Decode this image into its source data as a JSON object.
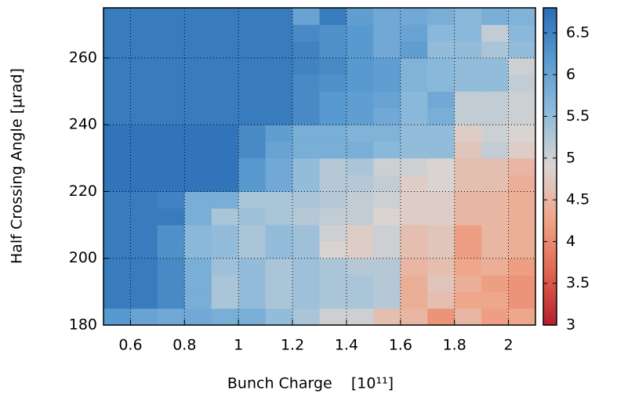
{
  "chart_data": {
    "type": "heatmap",
    "x_label": "Bunch Charge    [10¹¹]",
    "y_label": "Half Crossing Angle [µrad]",
    "x_bins": [
      0.5,
      0.6,
      0.7,
      0.8,
      0.9,
      1.0,
      1.1,
      1.2,
      1.3,
      1.4,
      1.5,
      1.6,
      1.7,
      1.8,
      1.9,
      2.0,
      2.1
    ],
    "y_bins": [
      180,
      185,
      190,
      195,
      200,
      205,
      210,
      215,
      220,
      225,
      230,
      235,
      240,
      245,
      250,
      255,
      260,
      265,
      270,
      275
    ],
    "z": [
      [
        6.2,
        6.0,
        5.9,
        5.9,
        5.8,
        5.8,
        5.5,
        5.3,
        5.0,
        5.0,
        4.6,
        4.5,
        4.1,
        4.5,
        4.2,
        4.3
      ],
      [
        6.6,
        6.6,
        6.4,
        5.8,
        5.3,
        5.5,
        5.3,
        5.4,
        5.3,
        5.3,
        5.2,
        4.4,
        4.6,
        4.3,
        4.3,
        4.1
      ],
      [
        6.6,
        6.6,
        6.4,
        5.8,
        5.3,
        5.5,
        5.3,
        5.4,
        5.3,
        5.3,
        5.2,
        4.4,
        4.7,
        4.4,
        4.2,
        4.1
      ],
      [
        6.6,
        6.6,
        6.4,
        5.8,
        5.4,
        5.5,
        5.3,
        5.4,
        5.3,
        5.2,
        5.2,
        4.5,
        4.6,
        4.3,
        4.4,
        4.2
      ],
      [
        6.6,
        6.6,
        6.3,
        5.6,
        5.5,
        5.3,
        5.5,
        5.4,
        4.9,
        4.8,
        5.0,
        4.6,
        4.7,
        4.2,
        4.5,
        4.4
      ],
      [
        6.6,
        6.6,
        6.3,
        5.6,
        5.5,
        5.3,
        5.5,
        5.4,
        5.0,
        4.8,
        5.0,
        4.6,
        4.7,
        4.2,
        4.5,
        4.4
      ],
      [
        6.6,
        6.6,
        6.6,
        5.8,
        5.3,
        5.4,
        5.3,
        5.2,
        5.1,
        5.1,
        4.9,
        4.8,
        4.8,
        4.5,
        4.5,
        4.4
      ],
      [
        6.6,
        6.6,
        6.5,
        5.8,
        5.8,
        5.3,
        5.3,
        5.3,
        5.2,
        5.1,
        5.0,
        4.8,
        4.8,
        4.5,
        4.5,
        4.4
      ],
      [
        6.7,
        6.7,
        6.7,
        6.7,
        6.7,
        6.2,
        5.9,
        5.5,
        5.2,
        5.2,
        5.1,
        4.8,
        4.9,
        4.6,
        4.6,
        4.4
      ],
      [
        6.7,
        6.7,
        6.7,
        6.7,
        6.7,
        6.2,
        5.9,
        5.5,
        5.2,
        5.3,
        5.0,
        5.0,
        4.9,
        4.6,
        4.6,
        4.5
      ],
      [
        6.7,
        6.7,
        6.7,
        6.7,
        6.7,
        6.4,
        6.0,
        5.8,
        5.8,
        5.8,
        5.6,
        5.5,
        5.5,
        4.7,
        5.1,
        4.8
      ],
      [
        6.7,
        6.7,
        6.7,
        6.7,
        6.7,
        6.4,
        6.1,
        5.8,
        5.8,
        5.7,
        5.7,
        5.5,
        5.5,
        4.8,
        5.0,
        4.9
      ],
      [
        6.6,
        6.6,
        6.6,
        6.6,
        6.6,
        6.6,
        6.6,
        6.4,
        6.2,
        6.1,
        5.9,
        5.6,
        5.8,
        5.1,
        5.1,
        5.0
      ],
      [
        6.6,
        6.6,
        6.6,
        6.6,
        6.6,
        6.6,
        6.6,
        6.4,
        6.2,
        6.1,
        6.0,
        5.6,
        5.9,
        5.1,
        5.1,
        5.0
      ],
      [
        6.6,
        6.6,
        6.6,
        6.6,
        6.6,
        6.6,
        6.6,
        6.4,
        6.3,
        6.2,
        6.1,
        5.7,
        5.6,
        5.5,
        5.5,
        5.1
      ],
      [
        6.6,
        6.6,
        6.6,
        6.6,
        6.6,
        6.6,
        6.6,
        6.5,
        6.4,
        6.2,
        6.1,
        5.7,
        5.6,
        5.5,
        5.5,
        5.0
      ],
      [
        6.6,
        6.6,
        6.6,
        6.6,
        6.6,
        6.6,
        6.6,
        6.5,
        6.3,
        6.2,
        5.9,
        6.1,
        5.5,
        5.5,
        5.3,
        5.5
      ],
      [
        6.6,
        6.6,
        6.6,
        6.6,
        6.6,
        6.6,
        6.6,
        6.4,
        6.3,
        6.2,
        5.9,
        6.0,
        5.6,
        5.6,
        5.1,
        5.6
      ],
      [
        6.6,
        6.6,
        6.6,
        6.6,
        6.6,
        6.6,
        6.6,
        6.0,
        6.6,
        6.1,
        5.9,
        5.9,
        5.8,
        5.6,
        5.8,
        5.7
      ]
    ],
    "xlim": [
      0.5,
      2.1
    ],
    "ylim": [
      180,
      275
    ],
    "xticks": [
      0.6,
      0.8,
      1,
      1.2,
      1.4,
      1.6,
      1.8,
      2
    ],
    "yticks": [
      180,
      200,
      220,
      240,
      260
    ],
    "clim": [
      3,
      6.8
    ],
    "cticks": [
      3,
      3.5,
      4,
      4.5,
      5,
      5.5,
      6,
      6.5
    ],
    "colormap": [
      "#b51f2e",
      "#e0664f",
      "#f0a588",
      "#d9d4d2",
      "#8fbbdb",
      "#5b9bd0",
      "#2a6db5"
    ],
    "grid": true
  }
}
